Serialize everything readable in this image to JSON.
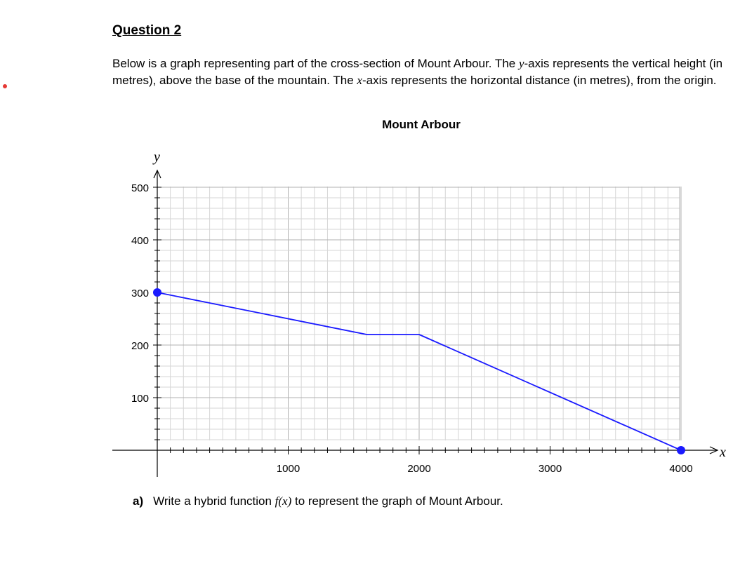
{
  "question": {
    "title": "Question 2",
    "intro_parts": [
      "Below is a graph representing part of the cross-section of Mount Arbour.  The ",
      "y",
      "-axis represents the vertical height (in metres), above the base of the mountain. The ",
      "x",
      "-axis represents the horizontal distance (in metres), from the origin."
    ]
  },
  "chart_data": {
    "type": "line",
    "title": "Mount Arbour",
    "xlabel": "x",
    "ylabel": "y",
    "xlim": [
      0,
      4000
    ],
    "ylim": [
      0,
      500
    ],
    "x_ticks": [
      1000,
      2000,
      3000,
      4000
    ],
    "y_ticks": [
      100,
      200,
      300,
      400,
      500
    ],
    "grid": true,
    "series": [
      {
        "color": "#1a1aff",
        "points": [
          [
            0,
            300
          ],
          [
            1600,
            220
          ],
          [
            2000,
            220
          ],
          [
            4000,
            0
          ]
        ],
        "endpoints": [
          [
            0,
            300
          ],
          [
            4000,
            0
          ]
        ]
      }
    ]
  },
  "part_a": {
    "label": "a)",
    "text_before": "Write a hybrid function ",
    "math": "f(x)",
    "text_after": " to represent the graph of Mount Arbour."
  }
}
